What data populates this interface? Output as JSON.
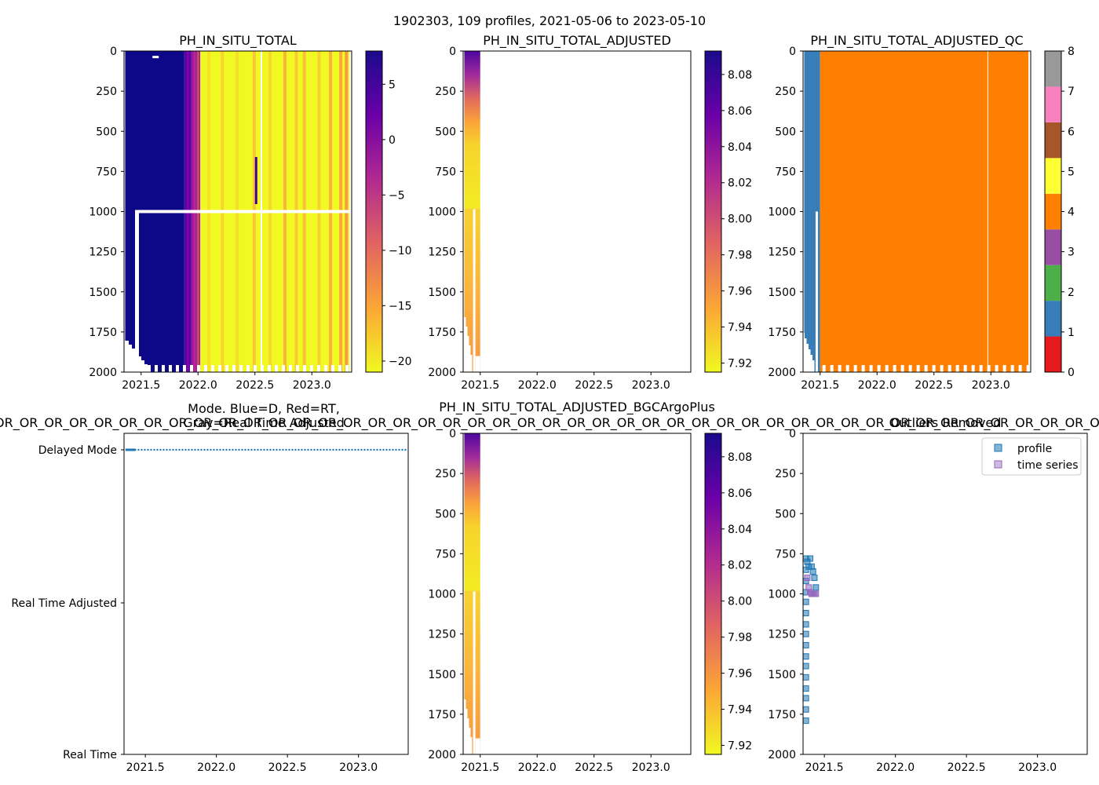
{
  "figure": {
    "suptitle": "1902303, 109 profiles, 2021-05-06 to 2023-05-10"
  },
  "chart_data": [
    {
      "id": "ph",
      "type": "heatmap",
      "title": "PH_IN_SITU_TOTAL",
      "xlim": [
        2021.35,
        2023.35
      ],
      "ylim": [
        2000,
        0
      ],
      "xticks": [
        "2021.5",
        "2022.0",
        "2022.5",
        "2023.0"
      ],
      "yticks": [
        "0",
        "250",
        "500",
        "750",
        "1000",
        "1250",
        "1500",
        "1750",
        "2000"
      ],
      "colormap": "plasma_r",
      "colorbar": {
        "ticks": [
          "5",
          "0",
          "−5",
          "−10",
          "−15",
          "−20"
        ],
        "values": [
          5,
          0,
          -5,
          -10,
          -15,
          -20
        ],
        "range": [
          -21,
          8
        ]
      },
      "bands": [
        {
          "x0": 2021.36,
          "x1": 2021.88,
          "value": 8,
          "desc": "deep blue"
        },
        {
          "x0": 2021.88,
          "x1": 2021.94,
          "value": 2,
          "desc": "purple"
        },
        {
          "x0": 2021.94,
          "x1": 2022.02,
          "value": -3,
          "desc": "magenta"
        },
        {
          "x0": 2022.02,
          "x1": 2023.33,
          "value": -20,
          "desc": "yellow"
        }
      ]
    },
    {
      "id": "ph_adj",
      "type": "heatmap",
      "title": "PH_IN_SITU_TOTAL_ADJUSTED",
      "xlim": [
        2021.35,
        2023.35
      ],
      "ylim": [
        2000,
        0
      ],
      "xticks": [
        "2021.5",
        "2022.0",
        "2022.5",
        "2023.0"
      ],
      "yticks": [
        "0",
        "250",
        "500",
        "750",
        "1000",
        "1250",
        "1500",
        "1750",
        "2000"
      ],
      "colormap": "plasma_r",
      "colorbar": {
        "ticks": [
          "8.08",
          "8.06",
          "8.04",
          "8.02",
          "8.00",
          "7.98",
          "7.96",
          "7.94",
          "7.92"
        ],
        "values": [
          8.08,
          8.06,
          8.04,
          8.02,
          8.0,
          7.98,
          7.96,
          7.94,
          7.92
        ],
        "range": [
          7.915,
          8.093
        ]
      },
      "x_extent": [
        2021.36,
        2021.5
      ]
    },
    {
      "id": "qc",
      "type": "heatmap",
      "title": "PH_IN_SITU_TOTAL_ADJUSTED_QC",
      "xlim": [
        2021.35,
        2023.35
      ],
      "ylim": [
        2000,
        0
      ],
      "xticks": [
        "2021.5",
        "2022.0",
        "2022.5",
        "2023.0"
      ],
      "yticks": [
        "0",
        "250",
        "500",
        "750",
        "1000",
        "1250",
        "1500",
        "1750",
        "2000"
      ],
      "colorbar": {
        "ticks": [
          "0",
          "1",
          "2",
          "3",
          "4",
          "5",
          "6",
          "7",
          "8"
        ],
        "colors": [
          "#e41a1c",
          "#377eb8",
          "#4daf4a",
          "#984ea3",
          "#ff7f00",
          "#ffff33",
          "#a65628",
          "#f781bf",
          "#999999"
        ]
      },
      "bands": [
        {
          "x0": 2021.36,
          "x1": 2021.5,
          "qc": 1
        },
        {
          "x0": 2021.5,
          "x1": 2023.33,
          "qc": 4
        }
      ]
    },
    {
      "id": "mode",
      "type": "scatter",
      "title": "Mode. Blue=D, Red=RT,",
      "title2": "Gray=Real Time Adjusted",
      "overlay_text": "OR_OR_OR_OR_OR_OR_OR_OR_OR_OR_OR_OR_OR_OR_OR_OR_OR_OR_OR_OR_OR_OR_OR_OR_OR_OR_OR_OR_OR_OR_OR_OR_OR_OR_OR_OR_OR_OR_OR_OR_OR_OR_OR_OR_OR_OR_OR_OR_OR_OR_OR_OR_OR_OR_OR_OR_OR_OR_OR_OR_OR",
      "xlim": [
        2021.35,
        2023.35
      ],
      "xticks": [
        "2021.5",
        "2022.0",
        "2022.5",
        "2023.0"
      ],
      "ycategories": [
        "Delayed Mode",
        "Real Time Adjusted",
        "Real Time"
      ],
      "points": {
        "category": "Delayed Mode",
        "x_start": 2021.36,
        "x_end": 2023.35,
        "color": "#1f77b4"
      }
    },
    {
      "id": "bgc",
      "type": "heatmap",
      "title": "PH_IN_SITU_TOTAL_ADJUSTED_BGCArgoPlus",
      "xlim": [
        2021.35,
        2023.35
      ],
      "ylim": [
        2000,
        0
      ],
      "xticks": [
        "2021.5",
        "2022.0",
        "2022.5",
        "2023.0"
      ],
      "yticks": [
        "0",
        "250",
        "500",
        "750",
        "1000",
        "1250",
        "1500",
        "1750",
        "2000"
      ],
      "colormap": "plasma_r",
      "colorbar": {
        "ticks": [
          "8.08",
          "8.06",
          "8.04",
          "8.02",
          "8.00",
          "7.98",
          "7.96",
          "7.94",
          "7.92"
        ],
        "values": [
          8.08,
          8.06,
          8.04,
          8.02,
          8.0,
          7.98,
          7.96,
          7.94,
          7.92
        ],
        "range": [
          7.915,
          8.093
        ]
      },
      "x_extent": [
        2021.36,
        2021.5
      ]
    },
    {
      "id": "outliers",
      "type": "scatter",
      "title": "Outliers Removed",
      "xlim": [
        2021.35,
        2023.35
      ],
      "ylim": [
        2000,
        0
      ],
      "xticks": [
        "2021.5",
        "2022.0",
        "2022.5",
        "2023.0"
      ],
      "yticks": [
        "0",
        "250",
        "500",
        "750",
        "1000",
        "1250",
        "1500",
        "1750",
        "2000"
      ],
      "legend": {
        "position": "top-right",
        "entries": [
          "profile",
          "time series"
        ]
      },
      "series": [
        {
          "name": "profile",
          "color": "#1f77b4",
          "points": [
            [
              2021.37,
              780
            ],
            [
              2021.37,
              850
            ],
            [
              2021.37,
              920
            ],
            [
              2021.37,
              990
            ],
            [
              2021.37,
              1050
            ],
            [
              2021.37,
              1120
            ],
            [
              2021.37,
              1190
            ],
            [
              2021.37,
              1250
            ],
            [
              2021.37,
              1320
            ],
            [
              2021.37,
              1390
            ],
            [
              2021.37,
              1450
            ],
            [
              2021.37,
              1520
            ],
            [
              2021.37,
              1590
            ],
            [
              2021.37,
              1650
            ],
            [
              2021.37,
              1720
            ],
            [
              2021.37,
              1790
            ],
            [
              2021.38,
              800
            ],
            [
              2021.39,
              830
            ],
            [
              2021.4,
              780
            ],
            [
              2021.41,
              830
            ],
            [
              2021.42,
              860
            ],
            [
              2021.43,
              900
            ],
            [
              2021.44,
              960
            ]
          ]
        },
        {
          "name": "time series",
          "color": "#9467bd",
          "points": [
            [
              2021.38,
              900
            ],
            [
              2021.39,
              960
            ],
            [
              2021.4,
              990
            ],
            [
              2021.41,
              1000
            ],
            [
              2021.42,
              1000
            ],
            [
              2021.43,
              1000
            ],
            [
              2021.44,
              1000
            ]
          ]
        }
      ]
    }
  ]
}
